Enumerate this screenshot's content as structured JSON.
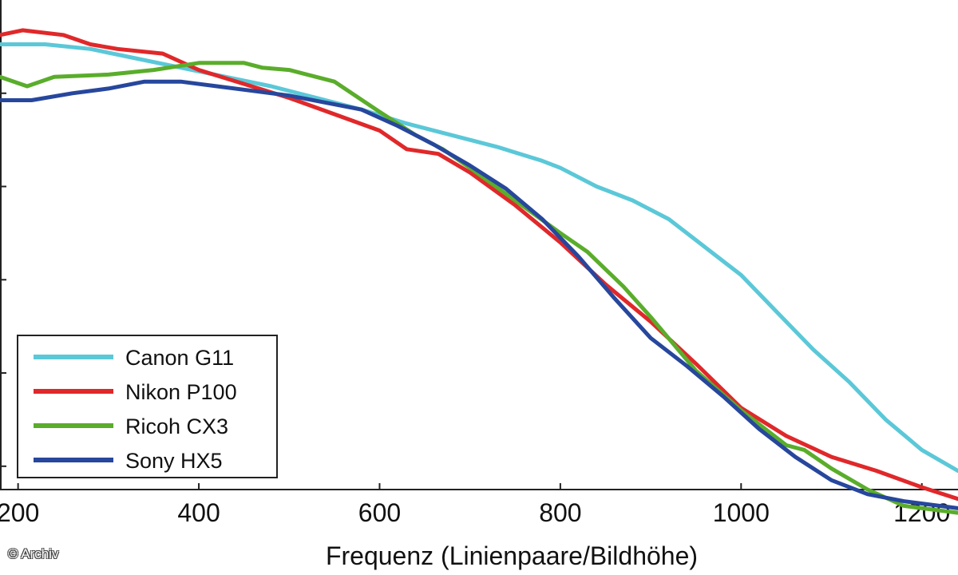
{
  "chart_data": {
    "type": "line",
    "xlabel": "Frequenz (Linienpaare/Bildhöhe)",
    "ylabel": "",
    "xlim": [
      180,
      1240
    ],
    "ylim": [
      -0.05,
      1.0
    ],
    "xticks": [
      200,
      400,
      600,
      800,
      1000,
      1200
    ],
    "yticks": [
      0.0,
      0.2,
      0.4,
      0.6,
      0.8
    ],
    "legend_position": "bottom-left",
    "series": [
      {
        "name": "Canon G11",
        "color": "#5bc8d8",
        "x": [
          180,
          230,
          280,
          330,
          380,
          430,
          480,
          530,
          580,
          630,
          680,
          730,
          780,
          800,
          840,
          880,
          920,
          960,
          1000,
          1040,
          1080,
          1120,
          1160,
          1200,
          1240
        ],
        "y": [
          0.905,
          0.905,
          0.895,
          0.875,
          0.855,
          0.835,
          0.815,
          0.79,
          0.765,
          0.735,
          0.71,
          0.685,
          0.655,
          0.64,
          0.6,
          0.57,
          0.53,
          0.47,
          0.41,
          0.33,
          0.25,
          0.18,
          0.1,
          0.035,
          -0.01
        ]
      },
      {
        "name": "Nikon P100",
        "color": "#e0282a",
        "x": [
          180,
          205,
          250,
          280,
          310,
          360,
          400,
          450,
          500,
          550,
          600,
          630,
          665,
          700,
          750,
          800,
          850,
          900,
          950,
          1000,
          1050,
          1100,
          1150,
          1200,
          1240
        ],
        "y": [
          0.925,
          0.935,
          0.925,
          0.905,
          0.895,
          0.885,
          0.85,
          0.82,
          0.79,
          0.755,
          0.72,
          0.68,
          0.67,
          0.63,
          0.56,
          0.48,
          0.39,
          0.31,
          0.22,
          0.125,
          0.065,
          0.02,
          -0.01,
          -0.045,
          -0.07
        ]
      },
      {
        "name": "Ricoh CX3",
        "color": "#5aad2b",
        "x": [
          180,
          210,
          240,
          300,
          350,
          400,
          450,
          470,
          500,
          550,
          600,
          640,
          670,
          700,
          750,
          800,
          830,
          870,
          900,
          950,
          1000,
          1050,
          1070,
          1100,
          1140,
          1180,
          1240
        ],
        "y": [
          0.835,
          0.815,
          0.835,
          0.84,
          0.85,
          0.865,
          0.865,
          0.855,
          0.85,
          0.825,
          0.76,
          0.71,
          0.68,
          0.64,
          0.57,
          0.5,
          0.46,
          0.385,
          0.32,
          0.205,
          0.12,
          0.045,
          0.035,
          -0.005,
          -0.05,
          -0.085,
          -0.1
        ]
      },
      {
        "name": "Sony HX5",
        "color": "#27479d",
        "x": [
          180,
          215,
          260,
          300,
          340,
          380,
          420,
          460,
          500,
          540,
          580,
          620,
          660,
          700,
          740,
          780,
          820,
          860,
          900,
          940,
          980,
          1020,
          1060,
          1100,
          1140,
          1180,
          1240
        ],
        "y": [
          0.785,
          0.785,
          0.8,
          0.81,
          0.825,
          0.825,
          0.815,
          0.805,
          0.795,
          0.78,
          0.765,
          0.73,
          0.69,
          0.645,
          0.595,
          0.53,
          0.45,
          0.36,
          0.275,
          0.215,
          0.15,
          0.08,
          0.02,
          -0.03,
          -0.06,
          -0.075,
          -0.09
        ]
      }
    ]
  },
  "footer": {
    "credit": "© Archiv"
  }
}
